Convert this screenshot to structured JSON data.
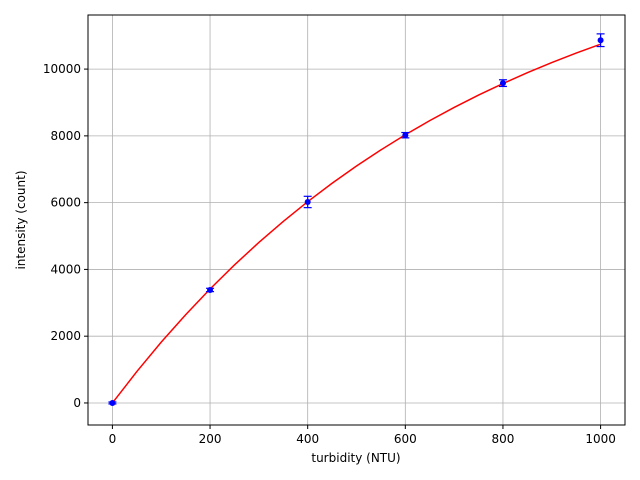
{
  "chart_data": {
    "type": "scatter",
    "xlabel": "turbidity (NTU)",
    "ylabel": "intensity (count)",
    "xlim": [
      -50,
      1050
    ],
    "xticks": [
      0,
      200,
      400,
      600,
      800,
      1000
    ],
    "ylim": [
      -660,
      11620
    ],
    "yticks": [
      0,
      2000,
      4000,
      6000,
      8000,
      10000
    ],
    "grid": true,
    "series": [
      {
        "type": "line",
        "color": "#ff0000",
        "x": [
          0,
          50,
          100,
          150,
          200,
          250,
          300,
          350,
          400,
          450,
          500,
          550,
          600,
          650,
          700,
          750,
          800,
          850,
          900,
          950,
          1000
        ],
        "values": [
          0,
          940,
          1821,
          2643,
          3413,
          4133,
          4808,
          5438,
          6028,
          6580,
          7097,
          7580,
          8033,
          8456,
          8852,
          9223,
          9567,
          9891,
          10195,
          10480,
          10746
        ]
      },
      {
        "type": "errorbar",
        "color": "#0000ff",
        "x": [
          0,
          200,
          400,
          600,
          800,
          1000
        ],
        "values": [
          0,
          3385,
          6020,
          8020,
          9580,
          10865
        ],
        "errors": [
          30,
          50,
          170,
          80,
          100,
          190
        ]
      }
    ]
  }
}
